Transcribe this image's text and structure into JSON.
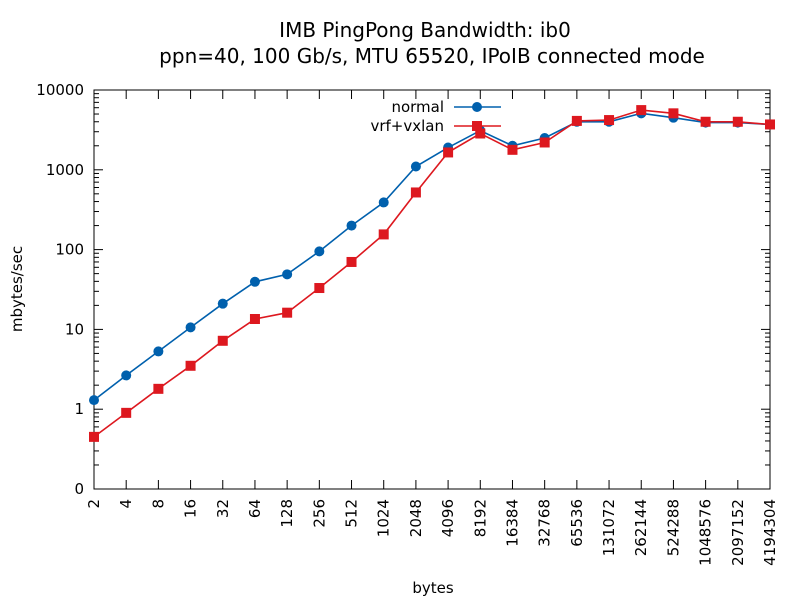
{
  "chart_data": {
    "type": "line",
    "title": "IMB PingPong Bandwidth: ib0",
    "subtitle": "ppn=40, 100 Gb/s, MTU 65520, IPoIB connected mode",
    "xlabel": "bytes",
    "ylabel": "mbytes/sec",
    "x_scale": "log2",
    "y_scale": "log10",
    "ylim": [
      0.1,
      10000
    ],
    "grid": false,
    "legend_position": "top-center",
    "x_ticks": [
      "2",
      "4",
      "8",
      "16",
      "32",
      "64",
      "128",
      "256",
      "512",
      "1024",
      "2048",
      "4096",
      "8192",
      "16384",
      "32768",
      "65536",
      "131072",
      "262144",
      "524288",
      "1048576",
      "2097152",
      "4194304"
    ],
    "y_ticks": [
      {
        "value": 0.1,
        "label": "0"
      },
      {
        "value": 1,
        "label": "1"
      },
      {
        "value": 10,
        "label": "10"
      },
      {
        "value": 100,
        "label": "100"
      },
      {
        "value": 1000,
        "label": "1000"
      },
      {
        "value": 10000,
        "label": "10000"
      }
    ],
    "x": [
      2,
      4,
      8,
      16,
      32,
      64,
      128,
      256,
      512,
      1024,
      2048,
      4096,
      8192,
      16384,
      32768,
      65536,
      131072,
      262144,
      524288,
      1048576,
      2097152,
      4194304
    ],
    "series": [
      {
        "name": "normal",
        "color": "#0060ad",
        "marker": "circle",
        "values": [
          1.3,
          2.65,
          5.3,
          10.6,
          21,
          39.5,
          49,
          95,
          200,
          390,
          1100,
          1900,
          3100,
          2000,
          2500,
          4000,
          4000,
          5100,
          4500,
          3900,
          3900,
          3700
        ]
      },
      {
        "name": "vrf+vxlan",
        "color": "#dd181f",
        "marker": "square",
        "values": [
          0.45,
          0.9,
          1.8,
          3.5,
          7.2,
          13.5,
          16.2,
          33,
          70,
          155,
          520,
          1650,
          2850,
          1780,
          2200,
          4100,
          4200,
          5600,
          5100,
          4000,
          4000,
          3700
        ]
      }
    ]
  }
}
